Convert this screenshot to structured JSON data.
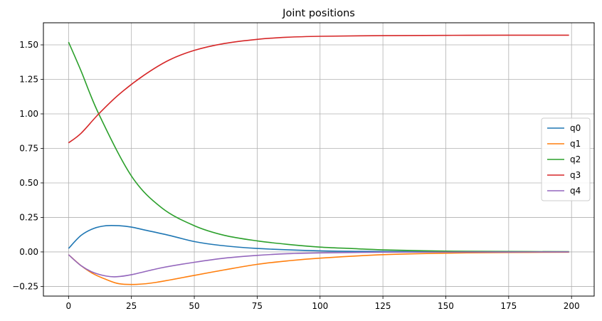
{
  "chart_data": {
    "type": "line",
    "title": "Joint positions",
    "xlabel": "",
    "ylabel": "",
    "xlim": [
      -10,
      209
    ],
    "ylim": [
      -0.32,
      1.66
    ],
    "xticks": [
      0,
      25,
      50,
      75,
      100,
      125,
      150,
      175,
      200
    ],
    "yticks": [
      -0.25,
      0.0,
      0.25,
      0.5,
      0.75,
      1.0,
      1.25,
      1.5
    ],
    "ytick_labels": [
      "−0.25",
      "0.00",
      "0.25",
      "0.50",
      "0.75",
      "1.00",
      "1.25",
      "1.50"
    ],
    "grid": true,
    "legend_position": "center-right",
    "series": [
      {
        "name": "q0",
        "color": "#1f77b4",
        "x": [
          0,
          5,
          10,
          15,
          20,
          25,
          30,
          40,
          50,
          60,
          75,
          100,
          125,
          150,
          175,
          199
        ],
        "values": [
          0.025,
          0.12,
          0.17,
          0.19,
          0.19,
          0.18,
          0.16,
          0.12,
          0.075,
          0.048,
          0.025,
          0.008,
          0.003,
          0.001,
          0.0005,
          0.0
        ]
      },
      {
        "name": "q1",
        "color": "#ff7f0e",
        "x": [
          0,
          5,
          10,
          15,
          20,
          27,
          35,
          50,
          62,
          75,
          87,
          100,
          125,
          150,
          175,
          199
        ],
        "values": [
          -0.02,
          -0.1,
          -0.16,
          -0.2,
          -0.23,
          -0.235,
          -0.22,
          -0.17,
          -0.13,
          -0.09,
          -0.065,
          -0.045,
          -0.02,
          -0.009,
          -0.004,
          -0.002
        ]
      },
      {
        "name": "q2",
        "color": "#2ca02c",
        "x": [
          0,
          5,
          12,
          25,
          37,
          50,
          62,
          75,
          87,
          100,
          112,
          125,
          150,
          175,
          199
        ],
        "values": [
          1.52,
          1.31,
          1.0,
          0.55,
          0.32,
          0.19,
          0.12,
          0.08,
          0.055,
          0.035,
          0.025,
          0.015,
          0.006,
          0.003,
          0.002
        ]
      },
      {
        "name": "q3",
        "color": "#d62728",
        "x": [
          0,
          5,
          12,
          20,
          30,
          40,
          50,
          62,
          75,
          87,
          100,
          125,
          150,
          175,
          199
        ],
        "values": [
          0.79,
          0.86,
          1.0,
          1.14,
          1.28,
          1.39,
          1.46,
          1.51,
          1.54,
          1.555,
          1.562,
          1.567,
          1.569,
          1.57,
          1.57
        ]
      },
      {
        "name": "q4",
        "color": "#9467bd",
        "x": [
          0,
          5,
          10,
          15,
          19,
          25,
          37,
          50,
          62,
          75,
          87,
          100,
          125,
          150,
          175,
          199
        ],
        "values": [
          -0.02,
          -0.1,
          -0.15,
          -0.175,
          -0.18,
          -0.165,
          -0.115,
          -0.075,
          -0.045,
          -0.025,
          -0.013,
          -0.007,
          -0.002,
          -0.001,
          -0.0005,
          0.0
        ]
      }
    ]
  }
}
